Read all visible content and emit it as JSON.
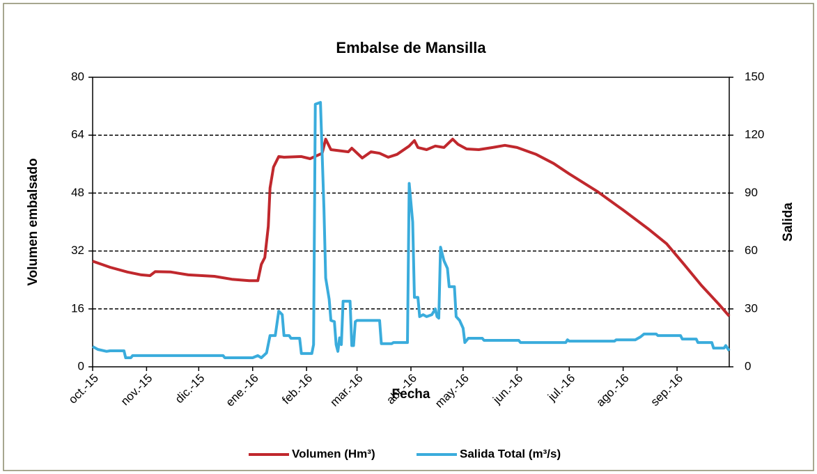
{
  "chart_data": {
    "type": "line",
    "title": "Embalse de Mansilla",
    "x_label": "Fecha",
    "y_label": "Volumen embalsado",
    "y2_label": "Salida",
    "xlim": [
      0,
      366
    ],
    "xticks": [
      {
        "value": 0,
        "label": "oct.-15"
      },
      {
        "value": 31,
        "label": "nov.-15"
      },
      {
        "value": 61,
        "label": "dic.-15"
      },
      {
        "value": 92,
        "label": "ene.-16"
      },
      {
        "value": 123,
        "label": "feb.-16"
      },
      {
        "value": 152,
        "label": "mar.-16"
      },
      {
        "value": 183,
        "label": "abr.-16"
      },
      {
        "value": 213,
        "label": "may.-16"
      },
      {
        "value": 244,
        "label": "jun.-16"
      },
      {
        "value": 274,
        "label": "jul.-16"
      },
      {
        "value": 305,
        "label": "ago.-16"
      },
      {
        "value": 336,
        "label": "sep.-16"
      }
    ],
    "ylim": [
      0,
      80
    ],
    "yticks": [
      0,
      16,
      32,
      48,
      64,
      80
    ],
    "y2lim": [
      0,
      150
    ],
    "y2ticks": [
      0,
      30,
      60,
      90,
      120,
      150
    ],
    "grid": true,
    "legend": "bottom",
    "series": [
      {
        "name": "Volumen (Hm³)",
        "color": "#c0282d",
        "x": [
          0,
          10,
          20,
          28,
          33,
          36,
          45,
          55,
          70,
          80,
          90,
          95,
          97,
          99,
          101,
          102,
          104,
          107,
          110,
          120,
          125,
          132,
          134,
          137,
          147,
          149,
          155,
          160,
          165,
          170,
          175,
          182,
          185,
          187,
          192,
          197,
          202,
          207,
          210,
          215,
          222,
          230,
          237,
          244,
          255,
          265,
          274,
          290,
          305,
          320,
          330,
          340,
          350,
          360,
          366
        ],
        "values": [
          29.2,
          27.5,
          26.2,
          25.4,
          25.2,
          26.3,
          26.2,
          25.4,
          25.0,
          24.2,
          23.8,
          23.8,
          28.3,
          30.2,
          38.8,
          49.4,
          55.2,
          58.1,
          57.9,
          58.1,
          57.5,
          59.0,
          62.9,
          60.0,
          59.4,
          60.4,
          57.7,
          59.4,
          59.0,
          57.9,
          58.7,
          61.0,
          62.5,
          60.6,
          60.0,
          61.0,
          60.6,
          62.9,
          61.5,
          60.2,
          60.0,
          60.6,
          61.2,
          60.6,
          58.7,
          56.2,
          53.3,
          48.5,
          43.3,
          37.9,
          34.0,
          28.3,
          22.5,
          17.3,
          14.0
        ]
      },
      {
        "name": "Salida Total (m³/s)",
        "color": "#3aacdc",
        "axis": "y2",
        "x": [
          0,
          3,
          8,
          10,
          18,
          19,
          22,
          23,
          75,
          76,
          92,
          95,
          97,
          100,
          102,
          105,
          107,
          109,
          110,
          113,
          114,
          119,
          120,
          126,
          127,
          128,
          131,
          133,
          134,
          136,
          137,
          139,
          140,
          141,
          142,
          143,
          144,
          148,
          149,
          150,
          151,
          152,
          165,
          166,
          172,
          173,
          181,
          182,
          184,
          185,
          187,
          188,
          190,
          192,
          195,
          197,
          198,
          199,
          200,
          202,
          204,
          205,
          208,
          209,
          211,
          213,
          214,
          216,
          224,
          225,
          245,
          246,
          272,
          273,
          274,
          300,
          301,
          312,
          315,
          317,
          324,
          325,
          338,
          339,
          347,
          348,
          356,
          357,
          363,
          364,
          366
        ],
        "values": [
          10.5,
          9,
          8,
          8.3,
          8.3,
          4.7,
          4.7,
          5.8,
          5.8,
          4.7,
          4.7,
          5.8,
          4.7,
          7.2,
          16.2,
          16.2,
          28.8,
          27,
          16.2,
          16.2,
          14.8,
          14.8,
          6.9,
          6.9,
          11.5,
          136,
          137,
          82,
          46,
          35,
          24,
          23.4,
          11.5,
          8,
          15,
          11.5,
          34,
          34,
          11,
          11,
          23.4,
          24,
          24,
          12,
          12,
          12.6,
          12.6,
          95,
          75,
          36,
          36,
          26,
          27,
          26,
          27,
          30,
          26,
          25.2,
          62,
          55,
          51,
          41.5,
          41.5,
          26,
          24,
          20,
          12.6,
          14.8,
          14.8,
          13.7,
          13.7,
          12.6,
          12.6,
          14,
          13.3,
          13.3,
          14,
          14,
          15.5,
          17,
          17,
          16.2,
          16.2,
          14.4,
          14.4,
          12.6,
          12.6,
          9.7,
          9.7,
          11,
          8.3
        ]
      }
    ]
  }
}
